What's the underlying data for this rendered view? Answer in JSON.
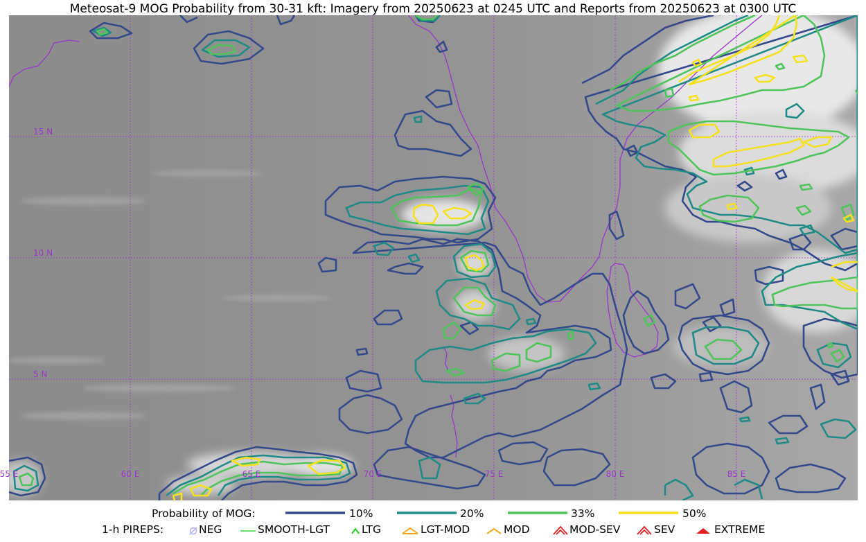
{
  "title": "Meteosat-9 MOG Probability from 30-31 kft: Imagery from 20250623 at 0245 UTC and Reports from 20250623 at 0300 UTC",
  "map": {
    "lon_range": [
      55,
      90
    ],
    "lat_range": [
      0,
      20
    ],
    "lat_labels": [
      {
        "lat": 15,
        "text": "15 N"
      },
      {
        "lat": 10,
        "text": "10 N"
      },
      {
        "lat": 5,
        "text": "5 N"
      }
    ],
    "lon_labels": [
      {
        "lon": 55,
        "text": "55 E"
      },
      {
        "lon": 60,
        "text": "60 E"
      },
      {
        "lon": 65,
        "text": "65 E"
      },
      {
        "lon": 70,
        "text": "70 E"
      },
      {
        "lon": 75,
        "text": "75 E"
      },
      {
        "lon": 80,
        "text": "80 E"
      },
      {
        "lon": 85,
        "text": "85 E"
      }
    ],
    "gridline_color": "#9a36c8",
    "coastline_color": "#9a36c8"
  },
  "legend_probability": {
    "label": "Probability of MOG:",
    "levels": [
      {
        "text": "10%",
        "color": "#34498a"
      },
      {
        "text": "20%",
        "color": "#208a86"
      },
      {
        "text": "33%",
        "color": "#4ec45a"
      },
      {
        "text": "50%",
        "color": "#f5e11f"
      }
    ]
  },
  "legend_pireps": {
    "label": "1-h PIREPS:",
    "items": [
      {
        "text": "NEG",
        "color": "#b0b0ff",
        "icon": "neg-icon"
      },
      {
        "text": "SMOOTH-LGT",
        "color": "#3ccf3c",
        "icon": "line-icon"
      },
      {
        "text": "LTG",
        "color": "#22cc22",
        "icon": "caret-icon"
      },
      {
        "text": "LGT-MOD",
        "color": "#f0a820",
        "icon": "caret-bar-icon"
      },
      {
        "text": "MOD",
        "color": "#f0a820",
        "icon": "caret-icon"
      },
      {
        "text": "MOD-SEV",
        "color": "#e02020",
        "icon": "double-caret-icon"
      },
      {
        "text": "SEV",
        "color": "#e02020",
        "icon": "double-caret-icon"
      },
      {
        "text": "EXTREME",
        "color": "#e02020",
        "icon": "filled-caret-icon"
      }
    ]
  }
}
